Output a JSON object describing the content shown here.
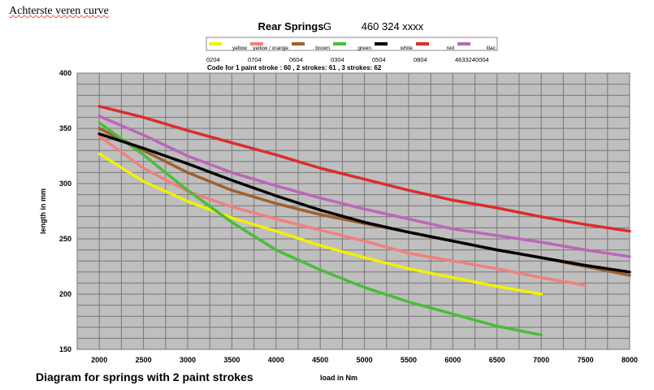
{
  "document": {
    "heading": "Achterste veren curve",
    "caption": "Diagram for springs with 2 paint strokes"
  },
  "chart_data": {
    "type": "line",
    "title": "Rear Springs",
    "title_letter": "G",
    "title_code": "460 324 xxxx",
    "code_note": "Code for 1 paint stroke : 60 , 2 strokes: 61 , 3 strokes: 62",
    "xlabel": "load in Nm",
    "ylabel": "length in mm",
    "xlim": [
      1750,
      8000
    ],
    "ylim": [
      150,
      400
    ],
    "xticks": [
      2000,
      2500,
      3000,
      3500,
      4000,
      4500,
      5000,
      5500,
      6000,
      6500,
      7000,
      7500,
      8000
    ],
    "yticks": [
      150,
      200,
      250,
      300,
      350,
      400
    ],
    "grid": true,
    "legend_position": "top",
    "series": [
      {
        "name": "yellow",
        "code": "0204",
        "color": "#f2f200",
        "x": [
          2000,
          2500,
          3000,
          3500,
          4000,
          4500,
          5000,
          5500,
          6000,
          6500,
          7000
        ],
        "y": [
          327,
          302,
          284,
          269,
          257,
          244,
          233,
          223,
          215,
          207,
          200
        ]
      },
      {
        "name": "yellow / orange",
        "code": "0704",
        "color": "#f08080",
        "x": [
          2000,
          2500,
          3000,
          3500,
          4000,
          4500,
          5000,
          5500,
          6000,
          6500,
          7000,
          7500
        ],
        "y": [
          343,
          314,
          293,
          279,
          268,
          258,
          248,
          237,
          230,
          223,
          215,
          208
        ]
      },
      {
        "name": "brown",
        "code": "0604",
        "color": "#a0602a",
        "x": [
          2000,
          2500,
          3000,
          3500,
          4000,
          4500,
          5000,
          5500,
          6000,
          6500,
          7000,
          7500,
          8000
        ],
        "y": [
          350,
          330,
          310,
          294,
          282,
          272,
          264,
          256,
          248,
          240,
          233,
          225,
          217
        ]
      },
      {
        "name": "green",
        "code": "0304",
        "color": "#4cbb3c",
        "x": [
          2000,
          2500,
          3000,
          3500,
          4000,
          4500,
          5000,
          5500,
          6000,
          6500,
          7000
        ],
        "y": [
          355,
          326,
          294,
          265,
          240,
          222,
          206,
          193,
          182,
          171,
          163
        ]
      },
      {
        "name": "white",
        "code": "0504",
        "color": "#000000",
        "x": [
          2000,
          2500,
          3000,
          3500,
          4000,
          4500,
          5000,
          5500,
          6000,
          6500,
          7000,
          7500,
          8000
        ],
        "y": [
          345,
          332,
          318,
          303,
          289,
          276,
          265,
          256,
          248,
          240,
          233,
          226,
          220
        ]
      },
      {
        "name": "red",
        "code": "0804",
        "color": "#dd2c2c",
        "x": [
          2000,
          2500,
          3000,
          3500,
          4000,
          4500,
          5000,
          5500,
          6000,
          6500,
          7000,
          7500,
          8000
        ],
        "y": [
          370,
          360,
          348,
          337,
          326,
          314,
          304,
          294,
          285,
          278,
          270,
          263,
          257
        ]
      },
      {
        "name": "lilac",
        "code": "4633240004",
        "color": "#bb66bb",
        "x": [
          2000,
          2500,
          3000,
          3500,
          4000,
          4500,
          5000,
          5500,
          6000,
          6500,
          7000,
          7500,
          8000
        ],
        "y": [
          361,
          344,
          325,
          310,
          298,
          287,
          277,
          268,
          259,
          253,
          247,
          240,
          234
        ]
      }
    ]
  }
}
